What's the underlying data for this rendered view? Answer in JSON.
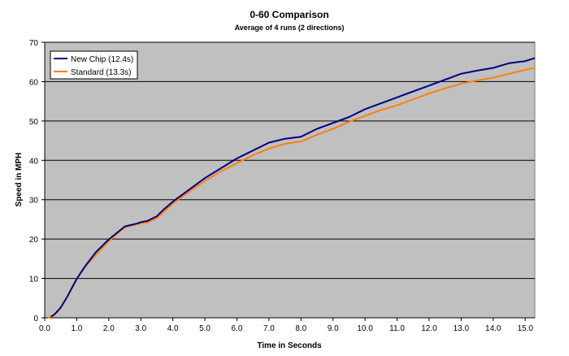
{
  "chart_data": {
    "type": "line",
    "title": "0-60 Comparison",
    "subtitle": "Average of 4 runs (2 directions)",
    "xlabel": "Time in Seconds",
    "ylabel": "Speed in MPH",
    "xlim": [
      0,
      15.3
    ],
    "ylim": [
      0,
      70
    ],
    "xticks": [
      0,
      1,
      2,
      3,
      4,
      5,
      6,
      7,
      8,
      9,
      10,
      11,
      12,
      13,
      14,
      15
    ],
    "xtick_labels": [
      "0.0",
      "1.0",
      "2.0",
      "3.0",
      "4.0",
      "5.0",
      "6.0",
      "7.0",
      "8.0",
      "9.0",
      "10.0",
      "11.0",
      "12.0",
      "13.0",
      "14.0",
      "15.0"
    ],
    "yticks": [
      0,
      10,
      20,
      30,
      40,
      50,
      60,
      70
    ],
    "ytick_labels": [
      "0",
      "10",
      "20",
      "30",
      "40",
      "50",
      "60",
      "70"
    ],
    "grid": "horizontal",
    "legend_position": "top-left",
    "plot_background": "#c0c0c0",
    "series": [
      {
        "name": "New Chip (12.4s)",
        "color": "#000080",
        "x": [
          0.2,
          0.3,
          0.5,
          0.7,
          1.0,
          1.3,
          1.6,
          2.0,
          2.5,
          2.9,
          3.0,
          3.2,
          3.5,
          3.7,
          4.0,
          4.5,
          5.0,
          5.5,
          6.0,
          6.5,
          7.0,
          7.5,
          8.0,
          8.5,
          9.0,
          9.5,
          10.0,
          10.5,
          11.0,
          11.5,
          12.0,
          12.5,
          13.0,
          13.5,
          14.0,
          14.5,
          15.0,
          15.3
        ],
        "y": [
          0.3,
          0.8,
          2.6,
          5.3,
          9.9,
          13.5,
          16.7,
          19.9,
          23.2,
          24.0,
          24.3,
          24.6,
          25.8,
          27.4,
          29.5,
          32.5,
          35.5,
          38.0,
          40.5,
          42.5,
          44.5,
          45.5,
          46.0,
          48.0,
          49.5,
          51.0,
          53.0,
          54.5,
          56.0,
          57.5,
          59.0,
          60.5,
          62.0,
          62.8,
          63.5,
          64.7,
          65.2,
          66.0
        ]
      },
      {
        "name": "Standard (13.3s)",
        "color": "#ff7f0e",
        "x": [
          0.1,
          0.2,
          0.4,
          0.6,
          0.9,
          1.2,
          1.6,
          2.0,
          2.5,
          2.9,
          3.0,
          3.2,
          3.5,
          3.7,
          4.0,
          4.5,
          5.0,
          5.5,
          6.0,
          6.5,
          7.0,
          7.5,
          8.0,
          8.5,
          9.0,
          9.5,
          10.0,
          10.5,
          11.0,
          11.5,
          12.0,
          12.5,
          13.0,
          13.5,
          14.0,
          14.5,
          15.0,
          15.3
        ],
        "y": [
          0.0,
          0.3,
          1.5,
          3.8,
          8.5,
          12.5,
          16.0,
          19.5,
          23.0,
          23.8,
          24.0,
          24.2,
          25.3,
          26.8,
          29.0,
          32.0,
          34.8,
          37.2,
          39.3,
          41.3,
          43.0,
          44.2,
          44.8,
          46.5,
          48.0,
          49.8,
          51.3,
          52.8,
          54.0,
          55.5,
          57.0,
          58.3,
          59.5,
          60.3,
          61.0,
          62.0,
          63.0,
          63.5
        ]
      }
    ]
  }
}
